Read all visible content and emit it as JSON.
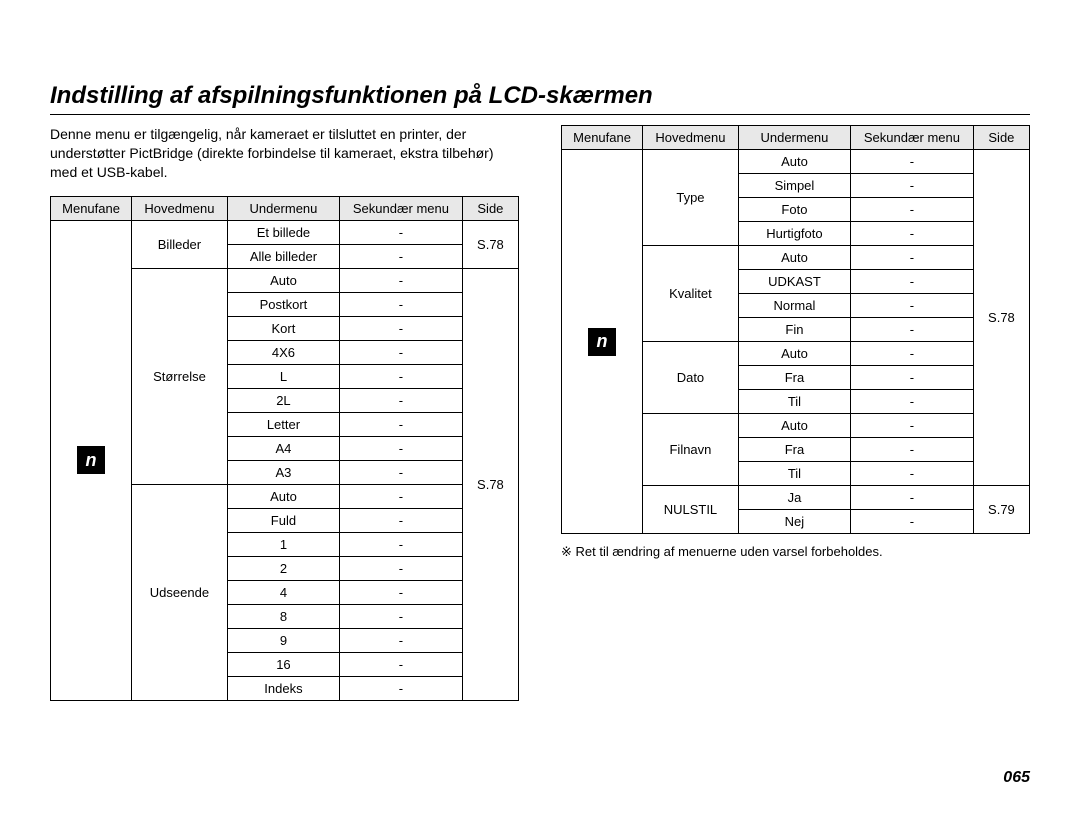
{
  "title": "Indstilling af afspilningsfunktionen på LCD-skærmen",
  "intro": "Denne menu er tilgængelig, når kameraet er tilsluttet en printer, der understøtter PictBridge (direkte forbindelse til kameraet, ekstra tilbehør) med et USB-kabel.",
  "headers": {
    "menufane": "Menufane",
    "hovedmenu": "Hovedmenu",
    "undermenu": "Undermenu",
    "sekundaer": "Sekundær menu",
    "side": "Side"
  },
  "icon_glyph": "n",
  "dash": "-",
  "left_table": {
    "side1": "S.78",
    "side2": "S.78",
    "groups": [
      {
        "hoved": "Billeder",
        "under": [
          "Et billede",
          "Alle billeder"
        ]
      },
      {
        "hoved": "Størrelse",
        "under": [
          "Auto",
          "Postkort",
          "Kort",
          "4X6",
          "L",
          "2L",
          "Letter",
          "A4",
          "A3"
        ]
      },
      {
        "hoved": "Udseende",
        "under": [
          "Auto",
          "Fuld",
          "1",
          "2",
          "4",
          "8",
          "9",
          "16",
          "Indeks"
        ]
      }
    ]
  },
  "right_table": {
    "side1": "S.78",
    "side2": "S.79",
    "groups": [
      {
        "hoved": "Type",
        "under": [
          "Auto",
          "Simpel",
          "Foto",
          "Hurtigfoto"
        ]
      },
      {
        "hoved": "Kvalitet",
        "under": [
          "Auto",
          "UDKAST",
          "Normal",
          "Fin"
        ]
      },
      {
        "hoved": "Dato",
        "under": [
          "Auto",
          "Fra",
          "Til"
        ]
      },
      {
        "hoved": "Filnavn",
        "under": [
          "Auto",
          "Fra",
          "Til"
        ]
      },
      {
        "hoved": "NULSTIL",
        "under": [
          "Ja",
          "Nej"
        ]
      }
    ]
  },
  "note": "※ Ret til ændring af menuerne uden varsel forbeholdes.",
  "pagenum": "065",
  "colors": {
    "header_bg": "#e8e8e8",
    "border": "#000000",
    "icon_bg": "#000000",
    "page_bg": "#ffffff"
  }
}
